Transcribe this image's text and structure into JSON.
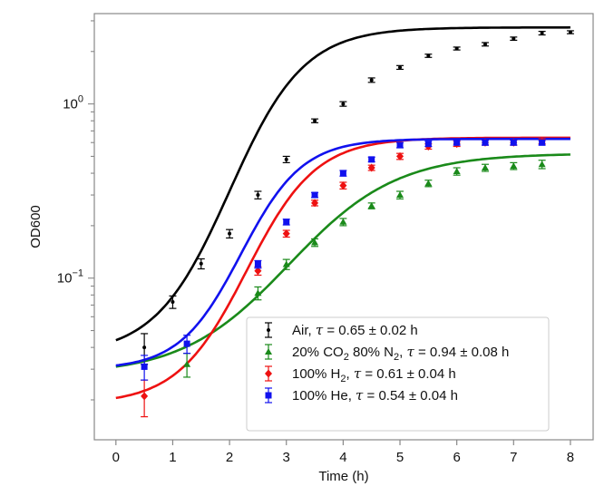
{
  "chart_data": {
    "type": "line",
    "title": "",
    "xlabel": "Time (h)",
    "ylabel": "OD600",
    "xlim": [
      -0.38,
      8.4
    ],
    "ylim": [
      0.0118,
      3.3
    ],
    "yscale": "log",
    "xticks": [
      0,
      1,
      2,
      3,
      4,
      5,
      6,
      7,
      8
    ],
    "xtick_labels": [
      "0",
      "1",
      "2",
      "3",
      "4",
      "5",
      "6",
      "7",
      "8"
    ],
    "yticks": [
      {
        "value": 1,
        "base": "10",
        "exp": "0"
      },
      {
        "value": 0.1,
        "base": "10",
        "exp": "−1"
      }
    ],
    "grid": false,
    "legend_position": "bottom-right",
    "series": [
      {
        "name": "Air",
        "label_parts": [
          "Air, ",
          "τ",
          " = 0.65 ± 0.02 h"
        ],
        "color": "#000000",
        "marker": "dot",
        "x": [
          0.5,
          1,
          1.5,
          2,
          2.5,
          3,
          3.5,
          4,
          4.5,
          5,
          5.5,
          6,
          6.5,
          7,
          7.5,
          8
        ],
        "y": [
          0.04,
          0.073,
          0.121,
          0.18,
          0.3,
          0.48,
          0.8,
          1.0,
          1.37,
          1.62,
          1.89,
          2.08,
          2.2,
          2.37,
          2.55,
          2.58
        ],
        "err": [
          0.008,
          0.006,
          0.008,
          0.01,
          0.015,
          0.02,
          0.02,
          0.03,
          0.04,
          0.04,
          0.04,
          0.04,
          0.05,
          0.05,
          0.06,
          0.05
        ],
        "fit": {
          "y0": 0.044,
          "ymax": 2.75,
          "rate": 1.53,
          "lag": 0.0
        }
      },
      {
        "name": "20% CO2 80% N2",
        "label_parts": [
          "20% CO",
          "2",
          " 80% N",
          "2",
          ", ",
          "τ",
          " = 0.94 ± 0.08 h"
        ],
        "color": "#1a8a1a",
        "marker": "triangle",
        "x": [
          1.25,
          2.5,
          3,
          3.5,
          4,
          4.5,
          5,
          5.5,
          6,
          6.5,
          7,
          7.5
        ],
        "y": [
          0.032,
          0.082,
          0.12,
          0.16,
          0.21,
          0.26,
          0.3,
          0.35,
          0.41,
          0.43,
          0.44,
          0.45
        ],
        "err": [
          0.005,
          0.007,
          0.008,
          0.008,
          0.01,
          0.01,
          0.015,
          0.015,
          0.02,
          0.02,
          0.02,
          0.025
        ],
        "fit": {
          "y0": 0.031,
          "ymax": 0.52,
          "rate": 1.06,
          "lag": 0.0
        }
      },
      {
        "name": "100% H2",
        "label_parts": [
          "100% H",
          "2",
          ", ",
          "τ",
          " = 0.61 ± 0.04 h"
        ],
        "color": "#ee1111",
        "marker": "diamond",
        "x": [
          0.5,
          2.5,
          3,
          3.5,
          4,
          4.5,
          5,
          5.5,
          6,
          6.5,
          7,
          7.5
        ],
        "y": [
          0.021,
          0.11,
          0.18,
          0.27,
          0.34,
          0.43,
          0.5,
          0.57,
          0.59,
          0.6,
          0.6,
          0.61
        ],
        "err": [
          0.005,
          0.006,
          0.008,
          0.01,
          0.015,
          0.015,
          0.02,
          0.02,
          0.02,
          0.02,
          0.02,
          0.02
        ],
        "fit": {
          "y0": 0.0205,
          "ymax": 0.64,
          "rate": 1.64,
          "lag": 0.0
        }
      },
      {
        "name": "100% He",
        "label_parts": [
          "100% He, ",
          "τ",
          " = 0.54 ± 0.04 h"
        ],
        "color": "#1111ee",
        "marker": "square",
        "x": [
          0.5,
          1.25,
          2.5,
          3,
          3.5,
          4,
          4.5,
          5,
          5.5,
          6,
          6.5,
          7,
          7.5
        ],
        "y": [
          0.031,
          0.042,
          0.12,
          0.21,
          0.3,
          0.4,
          0.48,
          0.58,
          0.59,
          0.6,
          0.6,
          0.6,
          0.6
        ],
        "err": [
          0.005,
          0.005,
          0.006,
          0.008,
          0.01,
          0.015,
          0.015,
          0.02,
          0.02,
          0.02,
          0.02,
          0.02,
          0.02
        ],
        "fit": {
          "y0": 0.0315,
          "ymax": 0.63,
          "rate": 1.85,
          "lag": 0.0
        }
      }
    ]
  }
}
